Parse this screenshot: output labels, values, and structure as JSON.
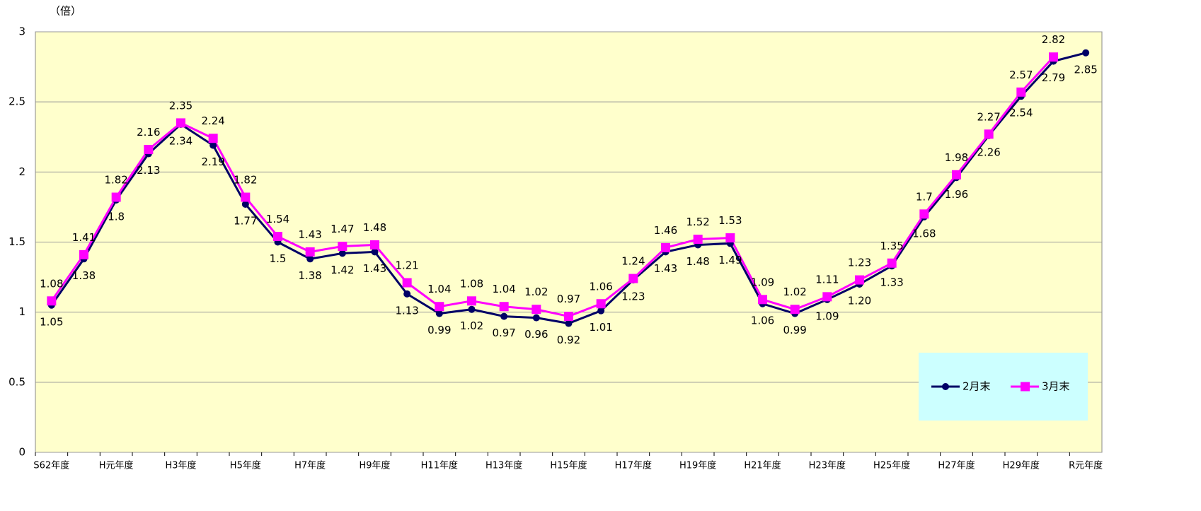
{
  "chart_data": {
    "type": "line",
    "unit_label": "（倍）",
    "categories": [
      "S62年度",
      null,
      "H元年度",
      null,
      "H3年度",
      null,
      "H5年度",
      null,
      "H7年度",
      null,
      "H9年度",
      null,
      "H11年度",
      null,
      "H13年度",
      null,
      "H15年度",
      null,
      "H17年度",
      null,
      "H19年度",
      null,
      "H21年度",
      null,
      "H23年度",
      null,
      "H25年度",
      null,
      "H27年度",
      null,
      "H29年度",
      null,
      "R元年度"
    ],
    "series": [
      {
        "name": "2月末",
        "color": "#000066",
        "marker": "circle",
        "values": [
          1.05,
          1.38,
          1.8,
          2.13,
          2.34,
          2.19,
          1.77,
          1.5,
          1.38,
          1.42,
          1.43,
          1.13,
          0.99,
          1.02,
          0.97,
          0.96,
          0.92,
          1.01,
          1.23,
          1.43,
          1.48,
          1.49,
          1.06,
          0.99,
          1.09,
          1.2,
          1.33,
          1.68,
          1.96,
          2.26,
          2.54,
          2.79,
          2.85
        ],
        "value_labels": [
          "1.05",
          "1.38",
          "1.8",
          "2.13",
          "2.34",
          "2.19",
          "1.77",
          "1.5",
          "1.38",
          "1.42",
          "1.43",
          "1.13",
          "0.99",
          "1.02",
          "0.97",
          "0.96",
          "0.92",
          "1.01",
          "1.23",
          "1.43",
          "1.48",
          "1.49",
          "1.06",
          "0.99",
          "1.09",
          "1.20",
          "1.33",
          "1.68",
          "1.96",
          "2.26",
          "2.54",
          "2.79",
          "2.85"
        ]
      },
      {
        "name": "3月末",
        "color": "#FF00FF",
        "marker": "square",
        "values": [
          1.08,
          1.41,
          1.82,
          2.16,
          2.35,
          2.24,
          1.82,
          1.54,
          1.43,
          1.47,
          1.48,
          1.21,
          1.04,
          1.08,
          1.04,
          1.02,
          0.97,
          1.06,
          1.24,
          1.46,
          1.52,
          1.53,
          1.09,
          1.02,
          1.11,
          1.23,
          1.35,
          1.7,
          1.98,
          2.27,
          2.57,
          2.82,
          null
        ]
      }
    ],
    "ylim": [
      0,
      3
    ],
    "yticks": [
      0,
      0.5,
      1,
      1.5,
      2,
      2.5,
      3
    ],
    "grid": true,
    "legend": "lower right",
    "background": "#FFFFCC",
    "legend_background": "#CCFFFF"
  }
}
